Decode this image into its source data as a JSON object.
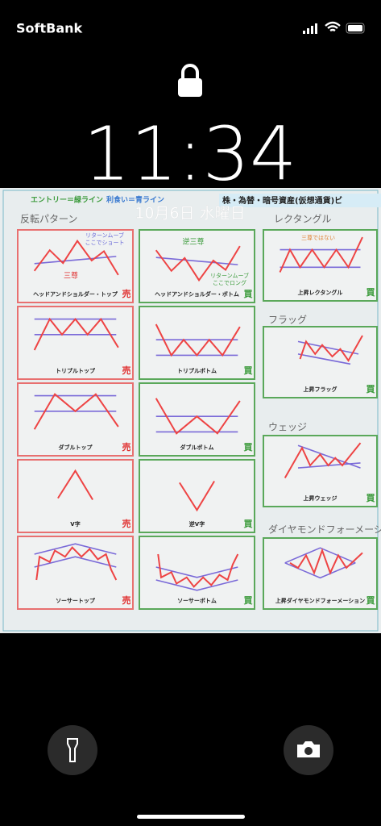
{
  "status_bar": {
    "carrier": "SoftBank"
  },
  "lock_screen": {
    "time": "11:34",
    "date": "10月6日 水曜日"
  },
  "wallpaper": {
    "legend": {
      "entry": "エントリー＝緑ライン",
      "take_profit": "利食い＝青ライン",
      "header": "株・為替・暗号資産(仮想通貨)ビ"
    },
    "sections": [
      "反転パターン",
      "レクタングル",
      "フラッグ",
      "ウェッジ",
      "ダイヤモンドフォーメーション"
    ],
    "cards": [
      {
        "label": "ヘッドアンドショルダー・トップ",
        "badge": "売",
        "notes": [
          "リターンムーブ",
          "ここでショート",
          "三尊"
        ]
      },
      {
        "label": "トリプルトップ",
        "badge": "売"
      },
      {
        "label": "ダブルトップ",
        "badge": "売"
      },
      {
        "label": "V字",
        "badge": "売"
      },
      {
        "label": "ソーサートップ",
        "badge": "売"
      },
      {
        "label": "ヘッドアンドショルダー・ボトム",
        "badge": "買",
        "notes": [
          "逆三尊",
          "リターンムーブ",
          "ここでロング"
        ]
      },
      {
        "label": "トリプルボトム",
        "badge": "買"
      },
      {
        "label": "ダブルボトム",
        "badge": "買"
      },
      {
        "label": "逆V字",
        "badge": "買"
      },
      {
        "label": "ソーサーボトム",
        "badge": "買"
      },
      {
        "label": "上昇レクタングル",
        "badge": "買",
        "notes": [
          "三尊ではない"
        ]
      },
      {
        "label": "上昇フラッグ",
        "badge": "買"
      },
      {
        "label": "上昇ウェッジ",
        "badge": "買"
      },
      {
        "label": "上昇ダイヤモンドフォーメーション",
        "badge": "買"
      }
    ]
  }
}
